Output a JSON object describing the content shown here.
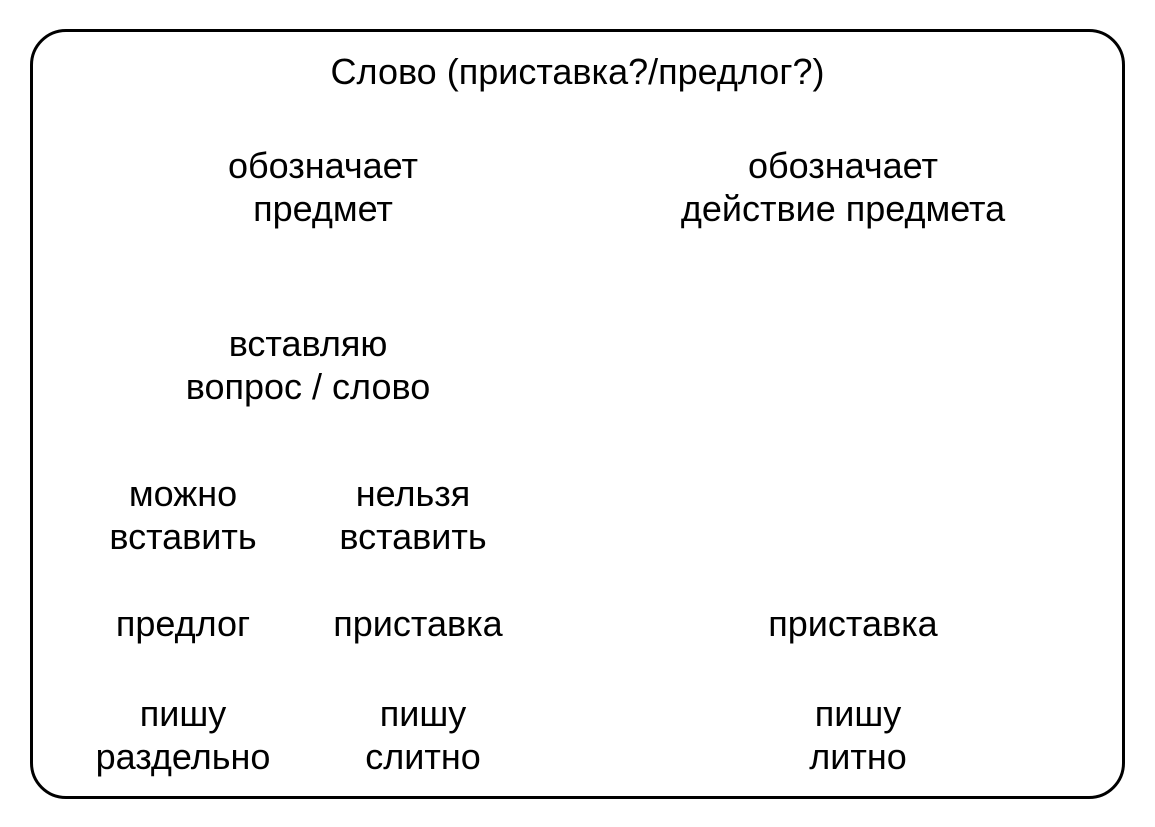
{
  "diagram": {
    "type": "tree",
    "background_color": "#ffffff",
    "border_color": "#000000",
    "border_width": 3,
    "border_radius": 36,
    "text_color": "#000000",
    "font_family": "Arial",
    "font_size": 36,
    "title": "Слово (приставка?/предлог?)",
    "left": {
      "level1": "обозначает\nпредмет",
      "level2": "вставляю\nвопрос / слово",
      "level3a": "можно\nвставить",
      "level3b": "нельзя\nвставить",
      "level4a": "предлог",
      "level4b": "приставка",
      "level5a": "пишу\nраздельно",
      "level5b": "пишу\nслитно"
    },
    "right": {
      "level1": "обозначает\nдействие предмета",
      "level4": "приставка",
      "level5": "пишу\nлитно"
    }
  }
}
